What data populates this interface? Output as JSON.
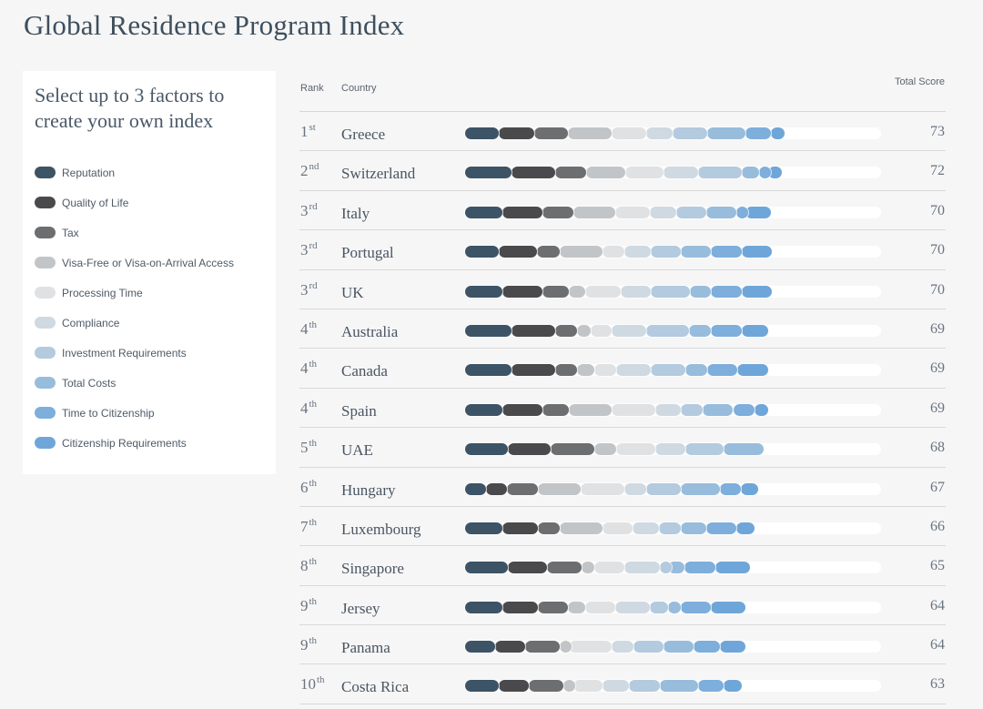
{
  "title": "Global Residence Program Index",
  "panel": {
    "heading": "Select up to 3 factors to create your own index"
  },
  "chart_data": {
    "type": "bar",
    "stacked": true,
    "orientation": "horizontal",
    "columns": {
      "rank": "Rank",
      "country": "Country",
      "total": "Total Score"
    },
    "factors": [
      {
        "name": "Reputation",
        "color": "#3d5366"
      },
      {
        "name": "Quality of Life",
        "color": "#4a4a4c"
      },
      {
        "name": "Tax",
        "color": "#6d6e70"
      },
      {
        "name": "Visa-Free or Visa-on-Arrival Access",
        "color": "#c2c5c8"
      },
      {
        "name": "Processing Time",
        "color": "#e0e1e2"
      },
      {
        "name": "Compliance",
        "color": "#cfd9e1"
      },
      {
        "name": "Investment Requirements",
        "color": "#b3cadf"
      },
      {
        "name": "Total Costs",
        "color": "#98bcdc"
      },
      {
        "name": "Time to Citizenship",
        "color": "#7eaedb"
      },
      {
        "name": "Citizenship Requirements",
        "color": "#6fa6d9"
      }
    ],
    "rows": [
      {
        "rank": "1",
        "suffix": "st",
        "country": "Greece",
        "total": 73,
        "values": [
          7.6,
          8.1,
          7.8,
          9.9,
          7.9,
          5.9,
          7.9,
          8.9,
          5.8,
          3.1
        ]
      },
      {
        "rank": "2",
        "suffix": "nd",
        "country": "Switzerland",
        "total": 72,
        "values": [
          10.6,
          10.0,
          6.9,
          9.0,
          8.8,
          7.8,
          10.0,
          3.9,
          2.1,
          3.0
        ]
      },
      {
        "rank": "3",
        "suffix": "rd",
        "country": "Italy",
        "total": 70,
        "values": [
          8.6,
          9.0,
          7.0,
          9.7,
          7.9,
          5.9,
          6.9,
          6.9,
          2.0,
          5.9
        ]
      },
      {
        "rank": "3",
        "suffix": "rd",
        "country": "Portugal",
        "total": 70,
        "values": [
          7.6,
          8.8,
          5.2,
          9.8,
          5.0,
          5.9,
          6.9,
          6.8,
          7.0,
          6.9
        ]
      },
      {
        "rank": "3",
        "suffix": "rd",
        "country": "UK",
        "total": 70,
        "values": [
          8.6,
          9.0,
          6.0,
          3.8,
          8.0,
          6.9,
          8.9,
          4.8,
          7.0,
          6.9
        ]
      },
      {
        "rank": "4",
        "suffix": "th",
        "country": "Australia",
        "total": 69,
        "values": [
          10.6,
          10.0,
          5.0,
          3.0,
          4.8,
          7.9,
          9.8,
          5.0,
          7.0,
          6.0
        ]
      },
      {
        "rank": "4",
        "suffix": "th",
        "country": "Canada",
        "total": 69,
        "values": [
          10.6,
          10.0,
          5.0,
          3.9,
          4.9,
          7.9,
          7.9,
          4.9,
          6.9,
          7.0
        ]
      },
      {
        "rank": "4",
        "suffix": "th",
        "country": "Spain",
        "total": 69,
        "values": [
          8.6,
          9.0,
          6.0,
          9.7,
          10.0,
          5.9,
          5.0,
          6.9,
          4.8,
          3.1
        ]
      },
      {
        "rank": "5",
        "suffix": "th",
        "country": "UAE",
        "total": 68,
        "values": [
          9.7,
          9.9,
          9.9,
          4.9,
          9.0,
          6.8,
          8.7,
          9.1,
          0,
          0
        ]
      },
      {
        "rank": "6",
        "suffix": "th",
        "country": "Hungary",
        "total": 67,
        "values": [
          4.8,
          4.8,
          6.9,
          9.9,
          9.9,
          4.9,
          7.9,
          8.9,
          4.9,
          3.9
        ]
      },
      {
        "rank": "7",
        "suffix": "th",
        "country": "Luxembourg",
        "total": 66,
        "values": [
          8.6,
          7.9,
          5.0,
          9.8,
          6.9,
          6.0,
          4.9,
          5.9,
          6.9,
          4.1
        ]
      },
      {
        "rank": "8",
        "suffix": "th",
        "country": "Singapore",
        "total": 65,
        "values": [
          9.7,
          9.0,
          7.9,
          2.9,
          6.9,
          7.9,
          1.9,
          3.9,
          7.0,
          7.9
        ]
      },
      {
        "rank": "9",
        "suffix": "th",
        "country": "Jersey",
        "total": 64,
        "values": [
          8.6,
          7.9,
          7.0,
          3.8,
          7.0,
          7.9,
          4.0,
          3.0,
          6.8,
          8.0
        ]
      },
      {
        "rank": "9",
        "suffix": "th",
        "country": "Panama",
        "total": 64,
        "values": [
          6.8,
          6.9,
          7.9,
          2.0,
          9.7,
          5.0,
          6.9,
          6.9,
          6.0,
          5.9
        ]
      },
      {
        "rank": "10",
        "suffix": "th",
        "country": "Costa Rica",
        "total": 63,
        "values": [
          7.6,
          7.0,
          7.9,
          2.1,
          6.8,
          6.0,
          6.9,
          8.8,
          5.9,
          4.0
        ]
      }
    ]
  }
}
